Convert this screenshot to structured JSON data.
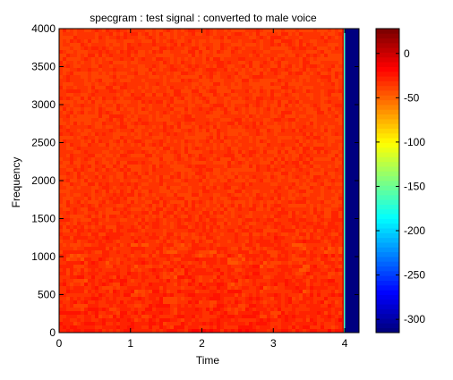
{
  "chart_data": {
    "type": "heatmap",
    "title": "specgram : test signal : converted to male voice",
    "xlabel": "Time",
    "ylabel": "Frequency",
    "xlim": [
      0,
      4.2
    ],
    "ylim": [
      0,
      4000
    ],
    "x_ticks": [
      0,
      1,
      2,
      3,
      4
    ],
    "y_ticks": [
      0,
      500,
      1000,
      1500,
      2000,
      2500,
      3000,
      3500,
      4000
    ],
    "signal_end_time": 3.98,
    "colorbar": {
      "colormap": "jet",
      "clim": [
        -315,
        28
      ],
      "ticks": [
        0,
        -50,
        -100,
        -150,
        -200,
        -250,
        -300
      ],
      "levels": 64
    },
    "dominant_level": -35,
    "silence_level": -315
  }
}
